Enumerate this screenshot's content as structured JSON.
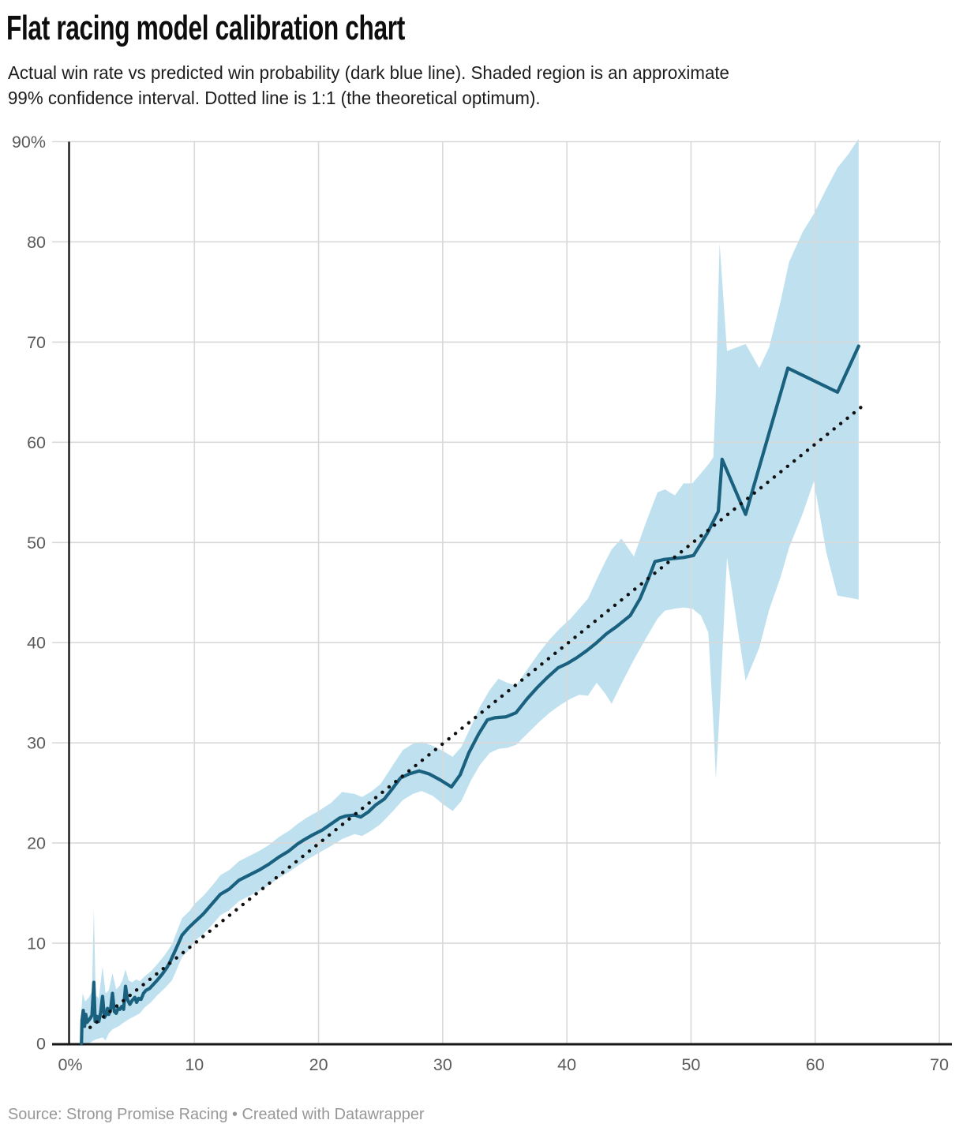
{
  "header": {
    "title": "Flat racing model calibration chart",
    "subtitle_lines": [
      "Actual win rate vs predicted win probability (dark blue line). Shaded region is an approximate",
      "99% confidence interval. Dotted line is 1:1 (the theoretical optimum)."
    ]
  },
  "footer": {
    "text": "Source: Strong Promise Racing • Created with Datawrapper"
  },
  "colors": {
    "line": "#1a617f",
    "band": "#bfe1ef",
    "grid": "#d9d9d9",
    "axis": "#161616",
    "dotted": "#111111",
    "tick_label": "#5b5b5b",
    "footer_text": "#979797",
    "background": "#ffffff"
  },
  "chart_data": {
    "type": "line",
    "title": "Flat racing model calibration chart",
    "xlabel": "",
    "ylabel": "",
    "xlim": [
      0,
      70
    ],
    "ylim": [
      0,
      90
    ],
    "grid": true,
    "legend": "none",
    "x_ticks": [
      {
        "v": 0,
        "label": "0%"
      },
      {
        "v": 10,
        "label": "10"
      },
      {
        "v": 20,
        "label": "20"
      },
      {
        "v": 30,
        "label": "30"
      },
      {
        "v": 40,
        "label": "40"
      },
      {
        "v": 50,
        "label": "50"
      },
      {
        "v": 60,
        "label": "60"
      },
      {
        "v": 70,
        "label": "70"
      }
    ],
    "y_ticks": [
      {
        "v": 0,
        "label": "0"
      },
      {
        "v": 10,
        "label": "10"
      },
      {
        "v": 20,
        "label": "20"
      },
      {
        "v": 30,
        "label": "30"
      },
      {
        "v": 40,
        "label": "40"
      },
      {
        "v": 50,
        "label": "50"
      },
      {
        "v": 60,
        "label": "60"
      },
      {
        "v": 70,
        "label": "70"
      },
      {
        "v": 80,
        "label": "80"
      },
      {
        "v": 90,
        "label": "90%"
      }
    ],
    "series": [
      {
        "name": "Actual win rate vs predicted win probability",
        "style": "solid",
        "points": [
          [
            0.9,
            0
          ],
          [
            0.95,
            2.3
          ],
          [
            1.05,
            3.3
          ],
          [
            1.15,
            1.7
          ],
          [
            1.25,
            2.9
          ],
          [
            1.35,
            2.1
          ],
          [
            1.55,
            2.4
          ],
          [
            1.75,
            2.8
          ],
          [
            1.9,
            6.1
          ],
          [
            2.0,
            2.2
          ],
          [
            2.15,
            2.7
          ],
          [
            2.3,
            2.2
          ],
          [
            2.45,
            3.1
          ],
          [
            2.6,
            4.7
          ],
          [
            2.75,
            2.6
          ],
          [
            2.9,
            2.9
          ],
          [
            3.0,
            3.5
          ],
          [
            3.1,
            2.9
          ],
          [
            3.25,
            3.4
          ],
          [
            3.4,
            5.0
          ],
          [
            3.55,
            3.2
          ],
          [
            3.7,
            3.0
          ],
          [
            3.85,
            3.5
          ],
          [
            4.0,
            3.4
          ],
          [
            4.15,
            3.7
          ],
          [
            4.3,
            3.4
          ],
          [
            4.45,
            5.7
          ],
          [
            4.6,
            4.4
          ],
          [
            4.8,
            3.9
          ],
          [
            5.0,
            4.3
          ],
          [
            5.2,
            4.6
          ],
          [
            5.35,
            4.1
          ],
          [
            5.5,
            4.5
          ],
          [
            5.7,
            4.4
          ],
          [
            5.9,
            5.0
          ],
          [
            6.1,
            5.3
          ],
          [
            6.4,
            5.5
          ],
          [
            6.7,
            5.9
          ],
          [
            7.0,
            6.3
          ],
          [
            7.4,
            6.9
          ],
          [
            7.8,
            7.6
          ],
          [
            8.1,
            8.3
          ],
          [
            8.5,
            9.4
          ],
          [
            9.0,
            10.8
          ],
          [
            9.5,
            11.5
          ],
          [
            10.0,
            12.1
          ],
          [
            10.7,
            12.9
          ],
          [
            11.4,
            13.9
          ],
          [
            12.1,
            14.9
          ],
          [
            12.8,
            15.4
          ],
          [
            13.6,
            16.3
          ],
          [
            14.4,
            16.8
          ],
          [
            15.2,
            17.3
          ],
          [
            16.0,
            17.9
          ],
          [
            16.8,
            18.6
          ],
          [
            17.6,
            19.2
          ],
          [
            18.3,
            19.9
          ],
          [
            18.8,
            20.3
          ],
          [
            19.5,
            20.8
          ],
          [
            20.3,
            21.3
          ],
          [
            21.0,
            21.9
          ],
          [
            21.7,
            22.5
          ],
          [
            22.2,
            22.7
          ],
          [
            22.9,
            22.8
          ],
          [
            23.4,
            22.6
          ],
          [
            24.0,
            23.1
          ],
          [
            24.6,
            23.8
          ],
          [
            25.3,
            24.4
          ],
          [
            26.0,
            25.5
          ],
          [
            26.6,
            26.5
          ],
          [
            27.3,
            26.9
          ],
          [
            28.1,
            27.2
          ],
          [
            28.9,
            26.9
          ],
          [
            29.8,
            26.3
          ],
          [
            30.7,
            25.6
          ],
          [
            31.4,
            26.8
          ],
          [
            32.1,
            29.0
          ],
          [
            32.9,
            30.9
          ],
          [
            33.6,
            32.3
          ],
          [
            34.2,
            32.5
          ],
          [
            35.1,
            32.6
          ],
          [
            35.9,
            33.0
          ],
          [
            36.8,
            34.4
          ],
          [
            37.6,
            35.5
          ],
          [
            38.4,
            36.5
          ],
          [
            39.3,
            37.5
          ],
          [
            40.0,
            37.9
          ],
          [
            40.8,
            38.5
          ],
          [
            41.6,
            39.2
          ],
          [
            42.4,
            40.0
          ],
          [
            43.2,
            40.9
          ],
          [
            44.0,
            41.6
          ],
          [
            45.1,
            42.7
          ],
          [
            45.9,
            44.4
          ],
          [
            46.6,
            46.5
          ],
          [
            47.1,
            48.1
          ],
          [
            47.8,
            48.3
          ],
          [
            48.6,
            48.4
          ],
          [
            49.4,
            48.5
          ],
          [
            50.2,
            48.7
          ],
          [
            51.3,
            50.9
          ],
          [
            52.2,
            53.1
          ],
          [
            52.5,
            58.3
          ],
          [
            54.4,
            52.8
          ],
          [
            57.8,
            67.4
          ],
          [
            61.8,
            65.0
          ],
          [
            63.5,
            69.6
          ]
        ]
      },
      {
        "name": "1:1 theoretical optimum",
        "style": "dotted",
        "points": [
          [
            1.6,
            1.6
          ],
          [
            63.8,
            63.6
          ]
        ]
      }
    ],
    "band": {
      "name": "99% confidence interval",
      "points": [
        [
          0.85,
          0,
          2.6
        ],
        [
          1.0,
          0,
          5.0
        ],
        [
          1.2,
          0,
          4.2
        ],
        [
          1.5,
          0,
          4.6
        ],
        [
          1.75,
          0.2,
          5.2
        ],
        [
          1.9,
          0.3,
          13.5
        ],
        [
          2.05,
          0.4,
          4.8
        ],
        [
          2.3,
          0.5,
          4.5
        ],
        [
          2.6,
          0.6,
          7.7
        ],
        [
          2.85,
          0.3,
          5.0
        ],
        [
          3.1,
          1.0,
          5.3
        ],
        [
          3.4,
          1.4,
          7.0
        ],
        [
          3.7,
          1.6,
          5.4
        ],
        [
          4.0,
          1.8,
          5.8
        ],
        [
          4.2,
          2.0,
          6.3
        ],
        [
          4.45,
          2.2,
          7.4
        ],
        [
          4.7,
          2.4,
          6.3
        ],
        [
          5.0,
          2.6,
          6.1
        ],
        [
          5.3,
          2.8,
          6.4
        ],
        [
          5.6,
          3.0,
          6.2
        ],
        [
          6.0,
          3.6,
          6.7
        ],
        [
          6.5,
          4.1,
          7.2
        ],
        [
          7.0,
          4.8,
          7.9
        ],
        [
          7.6,
          5.5,
          8.8
        ],
        [
          8.2,
          6.3,
          9.9
        ],
        [
          9.0,
          8.6,
          12.5
        ],
        [
          9.6,
          9.4,
          13.2
        ],
        [
          10.0,
          10.2,
          13.9
        ],
        [
          10.7,
          10.9,
          14.7
        ],
        [
          11.4,
          11.8,
          15.7
        ],
        [
          12.1,
          12.8,
          16.8
        ],
        [
          12.8,
          13.3,
          17.3
        ],
        [
          13.6,
          14.2,
          18.2
        ],
        [
          14.4,
          14.7,
          18.7
        ],
        [
          15.2,
          15.2,
          19.2
        ],
        [
          16.0,
          15.8,
          19.8
        ],
        [
          16.8,
          16.5,
          20.6
        ],
        [
          17.6,
          17.1,
          21.2
        ],
        [
          18.3,
          17.7,
          21.9
        ],
        [
          19.0,
          18.3,
          22.5
        ],
        [
          20.0,
          19.0,
          23.2
        ],
        [
          21.0,
          19.7,
          24.0
        ],
        [
          21.9,
          20.4,
          25.1
        ],
        [
          22.9,
          20.9,
          24.9
        ],
        [
          23.5,
          20.7,
          24.6
        ],
        [
          24.2,
          21.2,
          25.1
        ],
        [
          25.0,
          21.9,
          25.9
        ],
        [
          26.0,
          23.2,
          27.8
        ],
        [
          26.8,
          24.3,
          29.3
        ],
        [
          27.6,
          24.9,
          29.9
        ],
        [
          28.3,
          25.2,
          30.1
        ],
        [
          29.2,
          24.7,
          29.7
        ],
        [
          30.0,
          23.9,
          29.2
        ],
        [
          30.8,
          23.2,
          28.6
        ],
        [
          31.5,
          24.2,
          29.6
        ],
        [
          32.3,
          26.3,
          31.7
        ],
        [
          33.0,
          27.8,
          33.6
        ],
        [
          33.8,
          29.0,
          35.3
        ],
        [
          34.5,
          29.4,
          36.4
        ],
        [
          35.2,
          29.5,
          36.0
        ],
        [
          35.9,
          29.8,
          35.7
        ],
        [
          36.8,
          30.9,
          37.3
        ],
        [
          37.7,
          32.0,
          38.9
        ],
        [
          38.6,
          33.0,
          40.3
        ],
        [
          39.5,
          33.8,
          41.5
        ],
        [
          40.3,
          34.4,
          42.4
        ],
        [
          41.0,
          34.8,
          43.4
        ],
        [
          41.7,
          34.7,
          44.4
        ],
        [
          42.4,
          36.0,
          46.3
        ],
        [
          43.1,
          34.9,
          48.1
        ],
        [
          43.6,
          33.9,
          49.3
        ],
        [
          44.4,
          35.9,
          50.4
        ],
        [
          45.4,
          38.3,
          48.6
        ],
        [
          46.4,
          40.5,
          52.1
        ],
        [
          47.3,
          42.4,
          55.0
        ],
        [
          47.9,
          43.2,
          55.3
        ],
        [
          48.7,
          43.4,
          54.7
        ],
        [
          49.4,
          43.5,
          55.9
        ],
        [
          50.1,
          43.4,
          55.9
        ],
        [
          50.8,
          42.7,
          56.9
        ],
        [
          51.4,
          41.0,
          57.8
        ],
        [
          51.8,
          32.0,
          58.5
        ],
        [
          52.0,
          26.4,
          65.0
        ],
        [
          52.3,
          33.0,
          79.9
        ],
        [
          52.9,
          48.5,
          69.1
        ],
        [
          54.4,
          36.2,
          69.8
        ],
        [
          55.5,
          39.5,
          67.4
        ],
        [
          56.3,
          43.3,
          69.5
        ],
        [
          57.2,
          46.5,
          74.0
        ],
        [
          57.9,
          49.5,
          78.0
        ],
        [
          59.0,
          52.9,
          81.0
        ],
        [
          59.9,
          56.1,
          82.8
        ],
        [
          60.9,
          49.0,
          85.3
        ],
        [
          61.8,
          44.7,
          87.4
        ],
        [
          62.7,
          44.5,
          88.8
        ],
        [
          63.5,
          44.3,
          90.3
        ]
      ]
    }
  }
}
